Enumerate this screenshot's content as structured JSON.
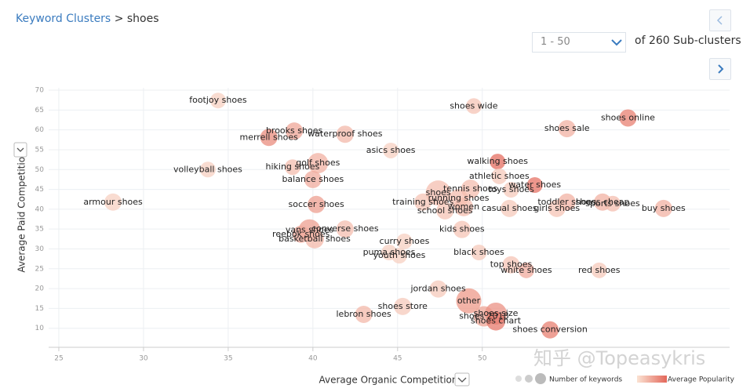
{
  "breadcrumb": {
    "parent": "Keyword Clusters",
    "separator": ">",
    "current": "shoes"
  },
  "pagination": {
    "range": "1 - 50",
    "total": "of 260 Sub-clusters"
  },
  "watermark": "知乎 @Topeasykris",
  "chart_data": {
    "type": "bubble",
    "x_label": "Average Organic Competition",
    "y_label": "Average Paid Competition",
    "xlim": [
      24.4,
      64.6
    ],
    "xticks": [
      25,
      30,
      35,
      40,
      45,
      50
    ],
    "ylim": [
      5.2,
      70.6
    ],
    "yticks": [
      10,
      15,
      20,
      25,
      30,
      35,
      40,
      45,
      50,
      55,
      60,
      65,
      70
    ],
    "grid": true,
    "size_legend": "Number of keywords",
    "color_legend": "Average Popularity",
    "color_low": "#fbe3d3",
    "color_high": "#e3675a",
    "points": [
      {
        "label": "footjoy shoes",
        "x": 34.4,
        "y": 67.4,
        "size": 10,
        "popularity": 15
      },
      {
        "label": "shoes wide",
        "x": 49.5,
        "y": 66,
        "size": 10,
        "popularity": 25
      },
      {
        "label": "shoes online",
        "x": 58.6,
        "y": 63,
        "size": 11,
        "popularity": 80
      },
      {
        "label": "brooks shoes",
        "x": 38.9,
        "y": 59.7,
        "size": 11,
        "popularity": 50
      },
      {
        "label": "merrell shoes",
        "x": 37.4,
        "y": 58.1,
        "size": 11,
        "popularity": 70
      },
      {
        "label": "waterproof shoes",
        "x": 41.9,
        "y": 58.9,
        "size": 11,
        "popularity": 35
      },
      {
        "label": "shoes sale",
        "x": 55,
        "y": 60.3,
        "size": 11,
        "popularity": 40
      },
      {
        "label": "asics shoes",
        "x": 44.6,
        "y": 54.8,
        "size": 10,
        "popularity": 15
      },
      {
        "label": "walking shoes",
        "x": 50.9,
        "y": 52,
        "size": 10,
        "popularity": 95
      },
      {
        "label": "golf shoes",
        "x": 40.3,
        "y": 51.6,
        "size": 13,
        "popularity": 40
      },
      {
        "label": "hiking shoes",
        "x": 38.8,
        "y": 50.6,
        "size": 10,
        "popularity": 30
      },
      {
        "label": "volleyball shoes",
        "x": 33.8,
        "y": 50,
        "size": 10,
        "popularity": 15
      },
      {
        "label": "athletic shoes",
        "x": 51,
        "y": 48.3,
        "size": 10,
        "popularity": 20
      },
      {
        "label": "balance shoes",
        "x": 40,
        "y": 47.5,
        "size": 11,
        "popularity": 45
      },
      {
        "label": "water shoes",
        "x": 53.1,
        "y": 46.1,
        "size": 10,
        "popularity": 90
      },
      {
        "label": "tennis shoes",
        "x": 49.3,
        "y": 45.1,
        "size": 12,
        "popularity": 30
      },
      {
        "label": "toys shoes",
        "x": 51.7,
        "y": 44.9,
        "size": 10,
        "popularity": 20
      },
      {
        "label": "shoes",
        "x": 47.4,
        "y": 44.1,
        "size": 16,
        "popularity": 30
      },
      {
        "label": "running shoes",
        "x": 48.6,
        "y": 42.7,
        "size": 12,
        "popularity": 30
      },
      {
        "label": "armour shoes",
        "x": 28.2,
        "y": 41.8,
        "size": 11,
        "popularity": 15
      },
      {
        "label": "soccer shoes",
        "x": 40.2,
        "y": 41.2,
        "size": 11,
        "popularity": 55
      },
      {
        "label": "training shoes",
        "x": 46.5,
        "y": 41.8,
        "size": 11,
        "popularity": 25
      },
      {
        "label": "women",
        "x": 48.9,
        "y": 40.6,
        "size": 12,
        "popularity": 30
      },
      {
        "label": "school shoes",
        "x": 47.8,
        "y": 39.6,
        "size": 11,
        "popularity": 25
      },
      {
        "label": "toddler shoes",
        "x": 55,
        "y": 41.8,
        "size": 11,
        "popularity": 40
      },
      {
        "label": "shoes cheap",
        "x": 57.1,
        "y": 41.8,
        "size": 11,
        "popularity": 40
      },
      {
        "label": "sports shoes",
        "x": 57.7,
        "y": 41.4,
        "size": 10,
        "popularity": 30
      },
      {
        "label": "casual shoes",
        "x": 51.6,
        "y": 40.2,
        "size": 11,
        "popularity": 20
      },
      {
        "label": "girls shoes",
        "x": 54.4,
        "y": 40.2,
        "size": 11,
        "popularity": 25
      },
      {
        "label": "buy shoes",
        "x": 60.7,
        "y": 40.2,
        "size": 11,
        "popularity": 40
      },
      {
        "label": "converse shoes",
        "x": 41.9,
        "y": 35,
        "size": 11,
        "popularity": 30
      },
      {
        "label": "vans shoes",
        "x": 39.8,
        "y": 34.7,
        "size": 14,
        "popularity": 55
      },
      {
        "label": "kids shoes",
        "x": 48.8,
        "y": 34.9,
        "size": 11,
        "popularity": 25
      },
      {
        "label": "reebok shoes",
        "x": 39.3,
        "y": 33.7,
        "size": 11,
        "popularity": 45
      },
      {
        "label": "basketball shoes",
        "x": 40.1,
        "y": 32.5,
        "size": 12,
        "popularity": 35
      },
      {
        "label": "curry shoes",
        "x": 45.4,
        "y": 31.9,
        "size": 10,
        "popularity": 15
      },
      {
        "label": "black shoes",
        "x": 49.8,
        "y": 29.1,
        "size": 10,
        "popularity": 20
      },
      {
        "label": "puma shoes",
        "x": 44.5,
        "y": 29.1,
        "size": 10,
        "popularity": 15
      },
      {
        "label": "youth shoes",
        "x": 45.1,
        "y": 28.3,
        "size": 10,
        "popularity": 15
      },
      {
        "label": "top shoes",
        "x": 51.7,
        "y": 26,
        "size": 11,
        "popularity": 25
      },
      {
        "label": "white shoes",
        "x": 52.6,
        "y": 24.6,
        "size": 10,
        "popularity": 45
      },
      {
        "label": "red shoes",
        "x": 56.9,
        "y": 24.6,
        "size": 10,
        "popularity": 20
      },
      {
        "label": "jordan shoes",
        "x": 47.4,
        "y": 19.9,
        "size": 11,
        "popularity": 20
      },
      {
        "label": "other",
        "x": 49.2,
        "y": 16.9,
        "size": 16,
        "popularity": 60
      },
      {
        "label": "shoes store",
        "x": 45.3,
        "y": 15.5,
        "size": 11,
        "popularity": 20
      },
      {
        "label": "lebron shoes",
        "x": 43,
        "y": 13.5,
        "size": 11,
        "popularity": 35
      },
      {
        "label": "shoes 2018",
        "x": 50.1,
        "y": 13,
        "size": 13,
        "popularity": 50
      },
      {
        "label": "shoes size",
        "x": 50.8,
        "y": 13.7,
        "size": 14,
        "popularity": 65
      },
      {
        "label": "shoes chart",
        "x": 50.8,
        "y": 11.8,
        "size": 12,
        "popularity": 85
      },
      {
        "label": "shoes conversion",
        "x": 54,
        "y": 9.6,
        "size": 11,
        "popularity": 80
      }
    ]
  }
}
